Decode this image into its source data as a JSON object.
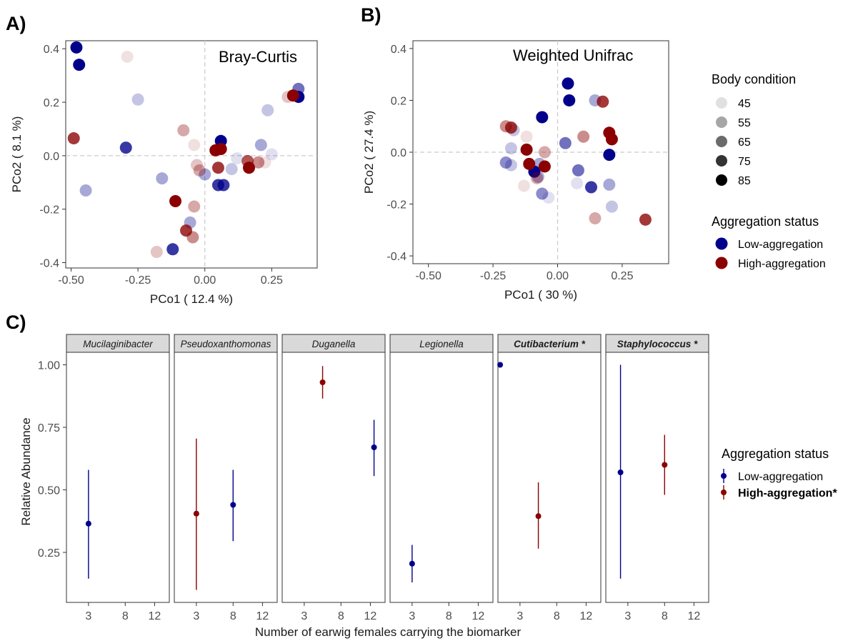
{
  "panel_labels": [
    "A)",
    "B)",
    "C)"
  ],
  "colors": {
    "low": "#00008B",
    "high": "#8B0000",
    "ref_line": "#cccccc",
    "strip_bg": "#d9d9d9"
  },
  "chart_data": [
    {
      "type": "scatter",
      "panel": "A)",
      "inset_label": "Bray-Curtis",
      "xlabel": "PCo1 ( 12.4 %)",
      "ylabel": "PCo2 ( 8.1 %)",
      "xlim": [
        -0.52,
        0.42
      ],
      "ylim": [
        -0.42,
        0.43
      ],
      "xticks": [
        -0.5,
        -0.25,
        0,
        0.25
      ],
      "xtick_labels": [
        "-0.50",
        "-0.25",
        "0.00",
        "0.25"
      ],
      "yticks": [
        -0.4,
        -0.2,
        0,
        0.2,
        0.4
      ],
      "ytick_labels": [
        "-0.4",
        "-0.2",
        "0.0",
        "0.2",
        "0.4"
      ],
      "points": [
        {
          "x": -0.48,
          "y": 0.405,
          "group": "Low-aggregation",
          "condition": 85
        },
        {
          "x": -0.47,
          "y": 0.34,
          "group": "Low-aggregation",
          "condition": 85
        },
        {
          "x": -0.295,
          "y": 0.03,
          "group": "Low-aggregation",
          "condition": 75
        },
        {
          "x": -0.445,
          "y": -0.13,
          "group": "Low-aggregation",
          "condition": 55
        },
        {
          "x": -0.25,
          "y": 0.21,
          "group": "Low-aggregation",
          "condition": 50
        },
        {
          "x": -0.16,
          "y": -0.085,
          "group": "Low-aggregation",
          "condition": 55
        },
        {
          "x": -0.12,
          "y": -0.35,
          "group": "Low-aggregation",
          "condition": 75
        },
        {
          "x": -0.055,
          "y": -0.25,
          "group": "Low-aggregation",
          "condition": 55
        },
        {
          "x": 0.06,
          "y": 0.055,
          "group": "Low-aggregation",
          "condition": 85
        },
        {
          "x": 0.05,
          "y": -0.11,
          "group": "Low-aggregation",
          "condition": 75
        },
        {
          "x": 0.07,
          "y": -0.11,
          "group": "Low-aggregation",
          "condition": 75
        },
        {
          "x": 0.0,
          "y": -0.07,
          "group": "Low-aggregation",
          "condition": 55
        },
        {
          "x": 0.1,
          "y": -0.05,
          "group": "Low-aggregation",
          "condition": 50
        },
        {
          "x": 0.12,
          "y": -0.01,
          "group": "Low-aggregation",
          "condition": 45
        },
        {
          "x": 0.21,
          "y": 0.04,
          "group": "Low-aggregation",
          "condition": 55
        },
        {
          "x": 0.235,
          "y": 0.17,
          "group": "Low-aggregation",
          "condition": 50
        },
        {
          "x": 0.25,
          "y": 0.005,
          "group": "Low-aggregation",
          "condition": 45
        },
        {
          "x": 0.35,
          "y": 0.22,
          "group": "Low-aggregation",
          "condition": 85
        },
        {
          "x": 0.35,
          "y": 0.25,
          "group": "Low-aggregation",
          "condition": 65
        },
        {
          "x": -0.49,
          "y": 0.065,
          "group": "High-aggregation",
          "condition": 75
        },
        {
          "x": -0.29,
          "y": 0.37,
          "group": "High-aggregation",
          "condition": 45
        },
        {
          "x": -0.08,
          "y": 0.095,
          "group": "High-aggregation",
          "condition": 55
        },
        {
          "x": -0.04,
          "y": 0.04,
          "group": "High-aggregation",
          "condition": 45
        },
        {
          "x": -0.03,
          "y": -0.035,
          "group": "High-aggregation",
          "condition": 50
        },
        {
          "x": -0.02,
          "y": -0.055,
          "group": "High-aggregation",
          "condition": 55
        },
        {
          "x": -0.11,
          "y": -0.17,
          "group": "High-aggregation",
          "condition": 85
        },
        {
          "x": -0.04,
          "y": -0.19,
          "group": "High-aggregation",
          "condition": 55
        },
        {
          "x": -0.18,
          "y": -0.36,
          "group": "High-aggregation",
          "condition": 50
        },
        {
          "x": -0.07,
          "y": -0.28,
          "group": "High-aggregation",
          "condition": 75
        },
        {
          "x": -0.045,
          "y": -0.305,
          "group": "High-aggregation",
          "condition": 60
        },
        {
          "x": 0.04,
          "y": 0.02,
          "group": "High-aggregation",
          "condition": 85
        },
        {
          "x": 0.06,
          "y": 0.025,
          "group": "High-aggregation",
          "condition": 85
        },
        {
          "x": 0.05,
          "y": -0.045,
          "group": "High-aggregation",
          "condition": 75
        },
        {
          "x": 0.16,
          "y": -0.02,
          "group": "High-aggregation",
          "condition": 70
        },
        {
          "x": 0.165,
          "y": -0.045,
          "group": "High-aggregation",
          "condition": 85
        },
        {
          "x": 0.2,
          "y": -0.025,
          "group": "High-aggregation",
          "condition": 60
        },
        {
          "x": 0.225,
          "y": -0.025,
          "group": "High-aggregation",
          "condition": 45
        },
        {
          "x": 0.31,
          "y": 0.22,
          "group": "High-aggregation",
          "condition": 50
        },
        {
          "x": 0.33,
          "y": 0.225,
          "group": "High-aggregation",
          "condition": 85
        }
      ]
    },
    {
      "type": "scatter",
      "panel": "B)",
      "inset_label": "Weighted Unifrac",
      "xlabel": "PCo1 ( 30 %)",
      "ylabel": "PCo2 ( 27.4 %)",
      "xlim": [
        -0.56,
        0.43
      ],
      "ylim": [
        -0.43,
        0.43
      ],
      "xticks": [
        -0.5,
        -0.25,
        0,
        0.25
      ],
      "xtick_labels": [
        "-0.50",
        "-0.25",
        "0.00",
        "0.25"
      ],
      "yticks": [
        -0.4,
        -0.2,
        0,
        0.2,
        0.4
      ],
      "ytick_labels": [
        "-0.4",
        "-0.2",
        "0.0",
        "0.2",
        "0.4"
      ],
      "points": [
        {
          "x": 0.04,
          "y": 0.265,
          "group": "Low-aggregation",
          "condition": 85
        },
        {
          "x": 0.045,
          "y": 0.2,
          "group": "Low-aggregation",
          "condition": 85
        },
        {
          "x": -0.06,
          "y": 0.135,
          "group": "Low-aggregation",
          "condition": 85
        },
        {
          "x": 0.03,
          "y": 0.035,
          "group": "Low-aggregation",
          "condition": 65
        },
        {
          "x": 0.145,
          "y": 0.2,
          "group": "Low-aggregation",
          "condition": 55
        },
        {
          "x": -0.2,
          "y": -0.04,
          "group": "Low-aggregation",
          "condition": 60
        },
        {
          "x": -0.18,
          "y": -0.05,
          "group": "Low-aggregation",
          "condition": 50
        },
        {
          "x": -0.18,
          "y": 0.015,
          "group": "Low-aggregation",
          "condition": 50
        },
        {
          "x": -0.17,
          "y": 0.085,
          "group": "Low-aggregation",
          "condition": 50
        },
        {
          "x": -0.09,
          "y": -0.075,
          "group": "Low-aggregation",
          "condition": 85
        },
        {
          "x": -0.075,
          "y": -0.095,
          "group": "Low-aggregation",
          "condition": 55
        },
        {
          "x": -0.07,
          "y": -0.045,
          "group": "Low-aggregation",
          "condition": 55
        },
        {
          "x": -0.06,
          "y": -0.16,
          "group": "Low-aggregation",
          "condition": 60
        },
        {
          "x": -0.035,
          "y": -0.175,
          "group": "Low-aggregation",
          "condition": 45
        },
        {
          "x": 0.08,
          "y": -0.07,
          "group": "Low-aggregation",
          "condition": 65
        },
        {
          "x": 0.075,
          "y": -0.12,
          "group": "Low-aggregation",
          "condition": 45
        },
        {
          "x": 0.13,
          "y": -0.135,
          "group": "Low-aggregation",
          "condition": 75
        },
        {
          "x": 0.2,
          "y": -0.125,
          "group": "Low-aggregation",
          "condition": 55
        },
        {
          "x": 0.2,
          "y": -0.01,
          "group": "Low-aggregation",
          "condition": 85
        },
        {
          "x": 0.21,
          "y": -0.21,
          "group": "Low-aggregation",
          "condition": 50
        },
        {
          "x": -0.2,
          "y": 0.1,
          "group": "High-aggregation",
          "condition": 60
        },
        {
          "x": -0.18,
          "y": 0.095,
          "group": "High-aggregation",
          "condition": 75
        },
        {
          "x": -0.12,
          "y": 0.06,
          "group": "High-aggregation",
          "condition": 45
        },
        {
          "x": -0.12,
          "y": 0.01,
          "group": "High-aggregation",
          "condition": 85
        },
        {
          "x": -0.11,
          "y": -0.045,
          "group": "High-aggregation",
          "condition": 85
        },
        {
          "x": -0.08,
          "y": -0.1,
          "group": "High-aggregation",
          "condition": 55
        },
        {
          "x": -0.05,
          "y": -0.055,
          "group": "High-aggregation",
          "condition": 85
        },
        {
          "x": -0.05,
          "y": 0.0,
          "group": "High-aggregation",
          "condition": 55
        },
        {
          "x": -0.13,
          "y": -0.13,
          "group": "High-aggregation",
          "condition": 45
        },
        {
          "x": 0.1,
          "y": 0.06,
          "group": "High-aggregation",
          "condition": 60
        },
        {
          "x": 0.175,
          "y": 0.195,
          "group": "High-aggregation",
          "condition": 75
        },
        {
          "x": 0.2,
          "y": 0.075,
          "group": "High-aggregation",
          "condition": 85
        },
        {
          "x": 0.21,
          "y": 0.05,
          "group": "High-aggregation",
          "condition": 85
        },
        {
          "x": 0.145,
          "y": -0.255,
          "group": "High-aggregation",
          "condition": 55
        },
        {
          "x": 0.34,
          "y": -0.26,
          "group": "High-aggregation",
          "condition": 75
        }
      ]
    },
    {
      "type": "errorbar",
      "panel": "C)",
      "xlabel": "Number of earwig females carrying the biomarker",
      "ylabel": "Relative Abundance",
      "xlim": [
        0,
        14
      ],
      "ylim": [
        0.05,
        1.05
      ],
      "xticks": [
        3,
        8,
        12
      ],
      "xtick_labels": [
        "3",
        "8",
        "12"
      ],
      "yticks": [
        0.25,
        0.5,
        0.75,
        1.0
      ],
      "ytick_labels": [
        "0.25",
        "0.50",
        "0.75",
        "1.00"
      ],
      "facets": [
        {
          "name": "Mucilaginibacter",
          "bold": false,
          "points": [
            {
              "group": "Low-aggregation",
              "x": 3,
              "y": 0.365,
              "ymin": 0.145,
              "ymax": 0.58
            }
          ]
        },
        {
          "name": "Pseudoxanthomonas",
          "bold": false,
          "points": [
            {
              "group": "High-aggregation",
              "x": 3,
              "y": 0.405,
              "ymin": 0.1,
              "ymax": 0.705
            },
            {
              "group": "Low-aggregation",
              "x": 8,
              "y": 0.44,
              "ymin": 0.295,
              "ymax": 0.58
            }
          ]
        },
        {
          "name": "Duganella",
          "bold": false,
          "points": [
            {
              "group": "High-aggregation",
              "x": 5.5,
              "y": 0.93,
              "ymin": 0.865,
              "ymax": 0.995
            },
            {
              "group": "Low-aggregation",
              "x": 12.5,
              "y": 0.67,
              "ymin": 0.555,
              "ymax": 0.78
            }
          ]
        },
        {
          "name": "Legionella",
          "bold": false,
          "points": [
            {
              "group": "Low-aggregation",
              "x": 3,
              "y": 0.205,
              "ymin": 0.13,
              "ymax": 0.28
            }
          ]
        },
        {
          "name": "Cutibacterium *",
          "bold": true,
          "points": [
            {
              "group": "Low-aggregation",
              "x": 0.3,
              "y": 1.0,
              "ymin": 0.995,
              "ymax": 1.005
            },
            {
              "group": "High-aggregation",
              "x": 5.5,
              "y": 0.395,
              "ymin": 0.265,
              "ymax": 0.53
            }
          ]
        },
        {
          "name": "Staphylococcus *",
          "bold": true,
          "points": [
            {
              "group": "Low-aggregation",
              "x": 2,
              "y": 0.57,
              "ymin": 0.145,
              "ymax": 1.0
            },
            {
              "group": "High-aggregation",
              "x": 8,
              "y": 0.6,
              "ymin": 0.48,
              "ymax": 0.72
            }
          ]
        }
      ]
    }
  ],
  "legend_body": {
    "title": "Body condition",
    "levels": [
      "45",
      "55",
      "65",
      "75",
      "85"
    ],
    "gray_values": [
      0.12,
      0.35,
      0.58,
      0.8,
      1.0
    ]
  },
  "legend_agg_top": {
    "title": "Aggregation status",
    "items": [
      {
        "label": "Low-aggregation",
        "color": "#00008B"
      },
      {
        "label": "High-aggregation",
        "color": "#8B0000"
      }
    ]
  },
  "legend_agg_bottom": {
    "title": "Aggregation status",
    "items": [
      {
        "label": "Low-aggregation",
        "color": "#00008B",
        "bold": false
      },
      {
        "label": "High-aggregation*",
        "color": "#8B0000",
        "bold": true
      }
    ]
  }
}
